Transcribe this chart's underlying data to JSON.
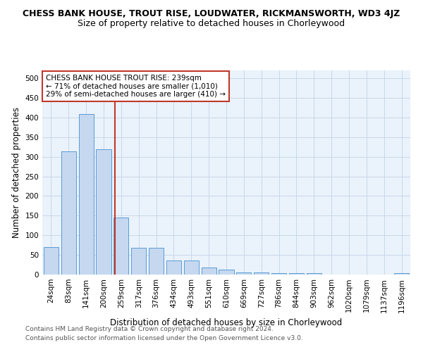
{
  "title": "CHESS BANK HOUSE, TROUT RISE, LOUDWATER, RICKMANSWORTH, WD3 4JZ",
  "subtitle": "Size of property relative to detached houses in Chorleywood",
  "xlabel": "Distribution of detached houses by size in Chorleywood",
  "ylabel": "Number of detached properties",
  "categories": [
    "24sqm",
    "83sqm",
    "141sqm",
    "200sqm",
    "259sqm",
    "317sqm",
    "376sqm",
    "434sqm",
    "493sqm",
    "551sqm",
    "610sqm",
    "669sqm",
    "727sqm",
    "786sqm",
    "844sqm",
    "903sqm",
    "962sqm",
    "1020sqm",
    "1079sqm",
    "1137sqm",
    "1196sqm"
  ],
  "values": [
    70,
    313,
    408,
    320,
    145,
    68,
    68,
    35,
    35,
    18,
    12,
    6,
    6,
    3,
    3,
    3,
    0,
    0,
    0,
    0,
    3
  ],
  "bar_color": "#c5d8f0",
  "bar_edge_color": "#5b9bd5",
  "vline_color": "#c0392b",
  "annotation_text": "CHESS BANK HOUSE TROUT RISE: 239sqm\n← 71% of detached houses are smaller (1,010)\n29% of semi-detached houses are larger (410) →",
  "annotation_box_color": "white",
  "annotation_box_edge_color": "#c0392b",
  "footnote1": "Contains HM Land Registry data © Crown copyright and database right 2024.",
  "footnote2": "Contains public sector information licensed under the Open Government Licence v3.0.",
  "ylim": [
    0,
    520
  ],
  "yticks": [
    0,
    50,
    100,
    150,
    200,
    250,
    300,
    350,
    400,
    450,
    500
  ],
  "grid_color": "#c8d8e8",
  "bg_color": "#eaf2fb",
  "title_fontsize": 9,
  "subtitle_fontsize": 9,
  "axis_label_fontsize": 8.5,
  "tick_fontsize": 7.5
}
